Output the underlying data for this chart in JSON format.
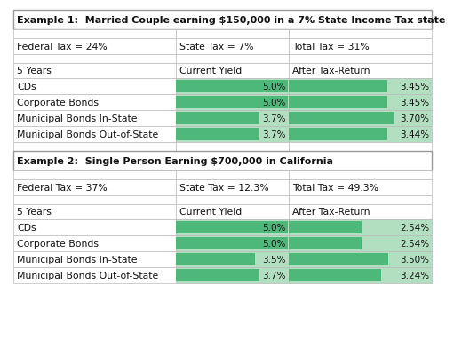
{
  "example1": {
    "title": "Example 1:  Married Couple earning $150,000 in a 7% State Income Tax state",
    "federal_tax": "Federal Tax = 24%",
    "state_tax": "State Tax = 7%",
    "total_tax": "Total Tax = 31%",
    "rows": [
      {
        "label": "CDs",
        "yield": 5.0,
        "after_tax": 3.45,
        "yield_str": "5.0%",
        "after_str": "3.45%"
      },
      {
        "label": "Corporate Bonds",
        "yield": 5.0,
        "after_tax": 3.45,
        "yield_str": "5.0%",
        "after_str": "3.45%"
      },
      {
        "label": "Municipal Bonds In-State",
        "yield": 3.7,
        "after_tax": 3.7,
        "yield_str": "3.7%",
        "after_str": "3.70%"
      },
      {
        "label": "Municipal Bonds Out-of-State",
        "yield": 3.7,
        "after_tax": 3.44,
        "yield_str": "3.7%",
        "after_str": "3.44%"
      }
    ]
  },
  "example2": {
    "title": "Example 2:  Single Person Earning $700,000 in California",
    "federal_tax": "Federal Tax = 37%",
    "state_tax": "State Tax = 12.3%",
    "total_tax": "Total Tax = 49.3%",
    "rows": [
      {
        "label": "CDs",
        "yield": 5.0,
        "after_tax": 2.54,
        "yield_str": "5.0%",
        "after_str": "2.54%"
      },
      {
        "label": "Corporate Bonds",
        "yield": 5.0,
        "after_tax": 2.54,
        "yield_str": "5.0%",
        "after_str": "2.54%"
      },
      {
        "label": "Municipal Bonds In-State",
        "yield": 3.5,
        "after_tax": 3.5,
        "yield_str": "3.5%",
        "after_str": "3.50%"
      },
      {
        "label": "Municipal Bonds Out-of-State",
        "yield": 3.7,
        "after_tax": 3.24,
        "yield_str": "3.7%",
        "after_str": "3.24%"
      }
    ]
  },
  "col_headers": [
    "5 Years",
    "Current Yield",
    "After Tax-Return"
  ],
  "bar_color_dark": "#4db87a",
  "bar_color_light": "#b2dfc0",
  "border_color": "#999999",
  "cell_border": "#bbbbbb",
  "max_yield": 5.0,
  "max_after": 5.0,
  "title_fontsize": 8.0,
  "body_fontsize": 7.8,
  "bar_fontsize": 7.5
}
